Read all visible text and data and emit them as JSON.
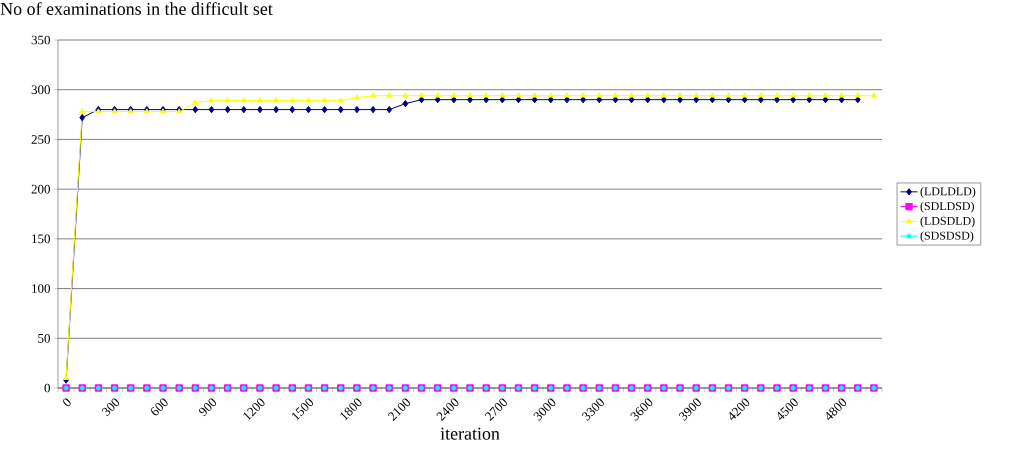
{
  "chart_data": {
    "type": "line",
    "title": "No of examinations in the difficult set",
    "xlabel": "iteration",
    "categories": [
      "0",
      null,
      null,
      "300",
      null,
      null,
      "600",
      null,
      null,
      "900",
      null,
      null,
      "1200",
      null,
      null,
      "1500",
      null,
      null,
      "1800",
      null,
      null,
      "2100",
      null,
      null,
      "2400",
      null,
      null,
      "2700",
      null,
      null,
      "3000",
      null,
      null,
      "3300",
      null,
      null,
      "3600",
      null,
      null,
      "3900",
      null,
      null,
      "4200",
      null,
      null,
      "4500",
      null,
      null,
      "4800",
      null,
      null
    ],
    "ylim": [
      0,
      350
    ],
    "yticks": [
      0,
      50,
      100,
      150,
      200,
      250,
      300,
      350
    ],
    "grid": "y",
    "legend": "right",
    "series": [
      {
        "name": "(LDLDLD)",
        "color": "#000080",
        "marker": "diamond",
        "values": [
          8,
          272,
          280,
          280,
          280,
          280,
          280,
          280,
          280,
          280,
          280,
          280,
          280,
          280,
          280,
          280,
          280,
          280,
          280,
          280,
          280,
          286,
          290,
          290,
          290,
          290,
          290,
          290,
          290,
          290,
          290,
          290,
          290,
          290,
          290,
          290,
          290,
          290,
          290,
          290,
          290,
          290,
          290,
          290,
          290,
          290,
          290,
          290,
          290,
          290,
          null
        ]
      },
      {
        "name": "(SDLDSD)",
        "color": "#ff00ff",
        "marker": "square",
        "values": [
          0,
          0,
          0,
          0,
          0,
          0,
          0,
          0,
          0,
          0,
          0,
          0,
          0,
          0,
          0,
          0,
          0,
          0,
          0,
          0,
          0,
          0,
          0,
          0,
          0,
          0,
          0,
          0,
          0,
          0,
          0,
          0,
          0,
          0,
          0,
          0,
          0,
          0,
          0,
          0,
          0,
          0,
          0,
          0,
          0,
          0,
          0,
          0,
          0,
          0,
          0
        ]
      },
      {
        "name": "(LDSDLD)",
        "color": "#ffff00",
        "marker": "triangle",
        "values": [
          10,
          278,
          278,
          278,
          278,
          278,
          278,
          278,
          287,
          289,
          289,
          289,
          289,
          289,
          289,
          289,
          289,
          289,
          292,
          294,
          294,
          294,
          294,
          294,
          294,
          294,
          294,
          294,
          294,
          294,
          294,
          294,
          294,
          294,
          294,
          294,
          294,
          294,
          294,
          294,
          294,
          294,
          294,
          294,
          294,
          294,
          294,
          294,
          294,
          294,
          294
        ]
      },
      {
        "name": "(SDSDSD)",
        "color": "#00ffff",
        "marker": "circle",
        "values": [
          0,
          0,
          0,
          0,
          0,
          0,
          0,
          0,
          0,
          0,
          0,
          0,
          0,
          0,
          0,
          0,
          0,
          0,
          0,
          0,
          0,
          0,
          0,
          0,
          0,
          0,
          0,
          0,
          0,
          0,
          0,
          0,
          0,
          0,
          0,
          0,
          0,
          0,
          0,
          0,
          0,
          0,
          0,
          0,
          0,
          0,
          0,
          0,
          0,
          0,
          0
        ]
      }
    ]
  }
}
